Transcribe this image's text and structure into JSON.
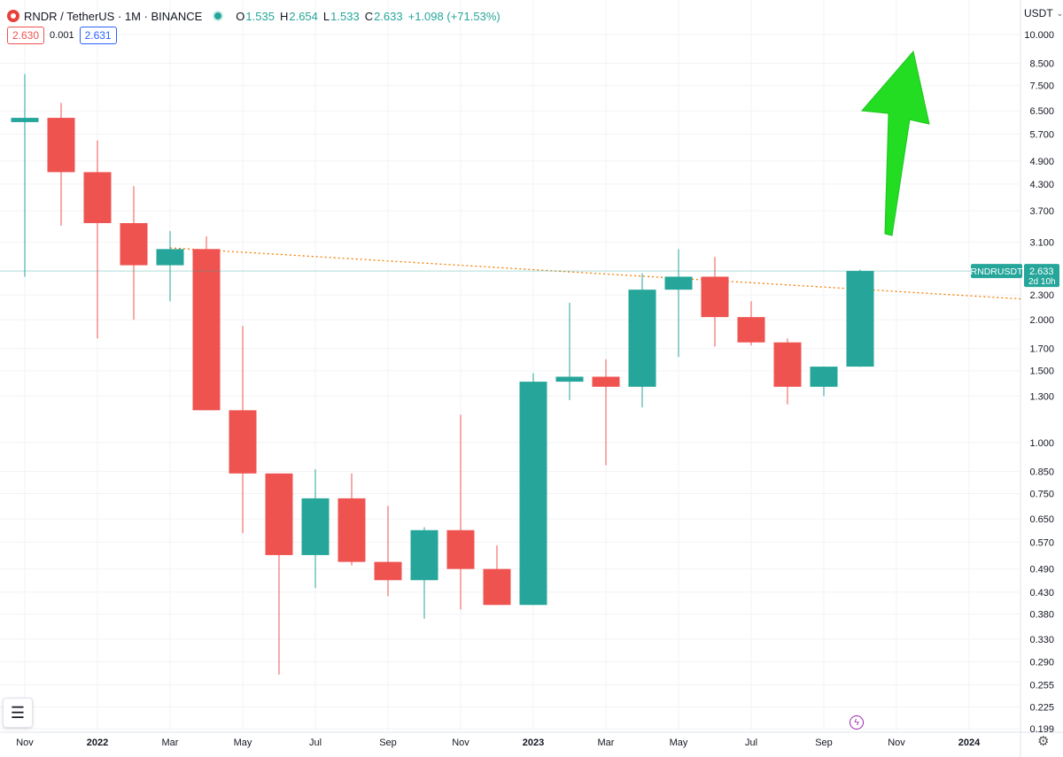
{
  "header": {
    "symbol_title": "RNDR / TetherUS · 1M · BINANCE",
    "ohlc": {
      "o_label": "O",
      "o": "1.535",
      "h_label": "H",
      "h": "2.654",
      "l_label": "L",
      "l": "1.533",
      "c_label": "C",
      "c": "2.633",
      "change": "+1.098 (+71.53%)"
    },
    "sell_price": "2.630",
    "spread": "0.001",
    "buy_price": "2.631",
    "currency": "USDT"
  },
  "price_tag": {
    "symbol": "RNDRUSDT",
    "price": "2.633",
    "countdown": "2d 10h"
  },
  "colors": {
    "up": "#26a69a",
    "down": "#ef5350",
    "trendline": "#f57c00",
    "arrow": "#22dd22",
    "priceline": "#26a69a"
  },
  "icons": {
    "symbol": "rndr-logo-icon",
    "status": "market-open-dot-icon",
    "legend": "object-tree-icon",
    "bolt": "lightning-icon",
    "settings": "gear-icon"
  },
  "chart_data": {
    "type": "candlestick",
    "scale": "log",
    "y_ticks": [
      "10.000",
      "8.500",
      "7.500",
      "6.500",
      "5.700",
      "4.900",
      "4.300",
      "3.700",
      "3.100",
      "2.300",
      "2.000",
      "1.700",
      "1.500",
      "1.300",
      "1.000",
      "0.850",
      "0.750",
      "0.650",
      "0.570",
      "0.490",
      "0.430",
      "0.380",
      "0.330",
      "0.290",
      "0.255",
      "0.225",
      "0.199"
    ],
    "x_ticks": [
      "Nov",
      "2022",
      "Mar",
      "May",
      "Jul",
      "Sep",
      "Nov",
      "2023",
      "Mar",
      "May",
      "Jul",
      "Sep",
      "Nov",
      "2024"
    ],
    "bold_x_ticks": [
      "2022",
      "2023",
      "2024"
    ],
    "ylim": [
      0.19,
      11.0
    ],
    "candles": [
      {
        "date": "2021-11",
        "o": 6.1,
        "h": 8.0,
        "l": 2.55,
        "c": 6.25
      },
      {
        "date": "2021-12",
        "o": 6.25,
        "h": 6.8,
        "l": 3.4,
        "c": 4.6
      },
      {
        "date": "2022-01",
        "o": 4.6,
        "h": 5.5,
        "l": 1.8,
        "c": 3.45
      },
      {
        "date": "2022-02",
        "o": 3.45,
        "h": 4.25,
        "l": 2.0,
        "c": 2.72
      },
      {
        "date": "2022-03",
        "o": 2.72,
        "h": 3.3,
        "l": 2.22,
        "c": 2.98
      },
      {
        "date": "2022-04",
        "o": 2.98,
        "h": 3.2,
        "l": 1.2,
        "c": 1.2
      },
      {
        "date": "2022-05",
        "o": 1.2,
        "h": 1.93,
        "l": 0.6,
        "c": 0.84
      },
      {
        "date": "2022-06",
        "o": 0.84,
        "h": 0.84,
        "l": 0.27,
        "c": 0.53
      },
      {
        "date": "2022-07",
        "o": 0.53,
        "h": 0.86,
        "l": 0.44,
        "c": 0.73
      },
      {
        "date": "2022-08",
        "o": 0.73,
        "h": 0.84,
        "l": 0.5,
        "c": 0.51
      },
      {
        "date": "2022-09",
        "o": 0.51,
        "h": 0.7,
        "l": 0.42,
        "c": 0.46
      },
      {
        "date": "2022-10",
        "o": 0.46,
        "h": 0.62,
        "l": 0.37,
        "c": 0.61
      },
      {
        "date": "2022-11",
        "o": 0.61,
        "h": 1.17,
        "l": 0.39,
        "c": 0.49
      },
      {
        "date": "2022-12",
        "o": 0.49,
        "h": 0.56,
        "l": 0.4,
        "c": 0.4
      },
      {
        "date": "2023-01",
        "o": 0.4,
        "h": 1.48,
        "l": 0.4,
        "c": 1.41
      },
      {
        "date": "2023-02",
        "o": 1.41,
        "h": 2.2,
        "l": 1.27,
        "c": 1.45
      },
      {
        "date": "2023-03",
        "o": 1.45,
        "h": 1.6,
        "l": 0.88,
        "c": 1.37
      },
      {
        "date": "2023-04",
        "o": 1.37,
        "h": 2.6,
        "l": 1.22,
        "c": 2.37
      },
      {
        "date": "2023-05",
        "o": 2.37,
        "h": 2.98,
        "l": 1.62,
        "c": 2.55
      },
      {
        "date": "2023-06",
        "o": 2.55,
        "h": 2.85,
        "l": 1.72,
        "c": 2.03
      },
      {
        "date": "2023-07",
        "o": 2.03,
        "h": 2.22,
        "l": 1.73,
        "c": 1.76
      },
      {
        "date": "2023-08",
        "o": 1.76,
        "h": 1.8,
        "l": 1.24,
        "c": 1.37
      },
      {
        "date": "2023-09",
        "o": 1.37,
        "h": 1.52,
        "l": 1.3,
        "c": 1.535
      },
      {
        "date": "2023-10",
        "o": 1.535,
        "h": 2.654,
        "l": 1.533,
        "c": 2.633
      }
    ],
    "trendline": [
      {
        "date": "2022-03",
        "price": 3.0
      },
      {
        "date": "2024-02",
        "price": 2.25
      }
    ],
    "arrow": {
      "from": {
        "date": "2023-11",
        "price": 3.25
      },
      "to": {
        "date": "2023-12",
        "price": 9.0
      }
    }
  }
}
